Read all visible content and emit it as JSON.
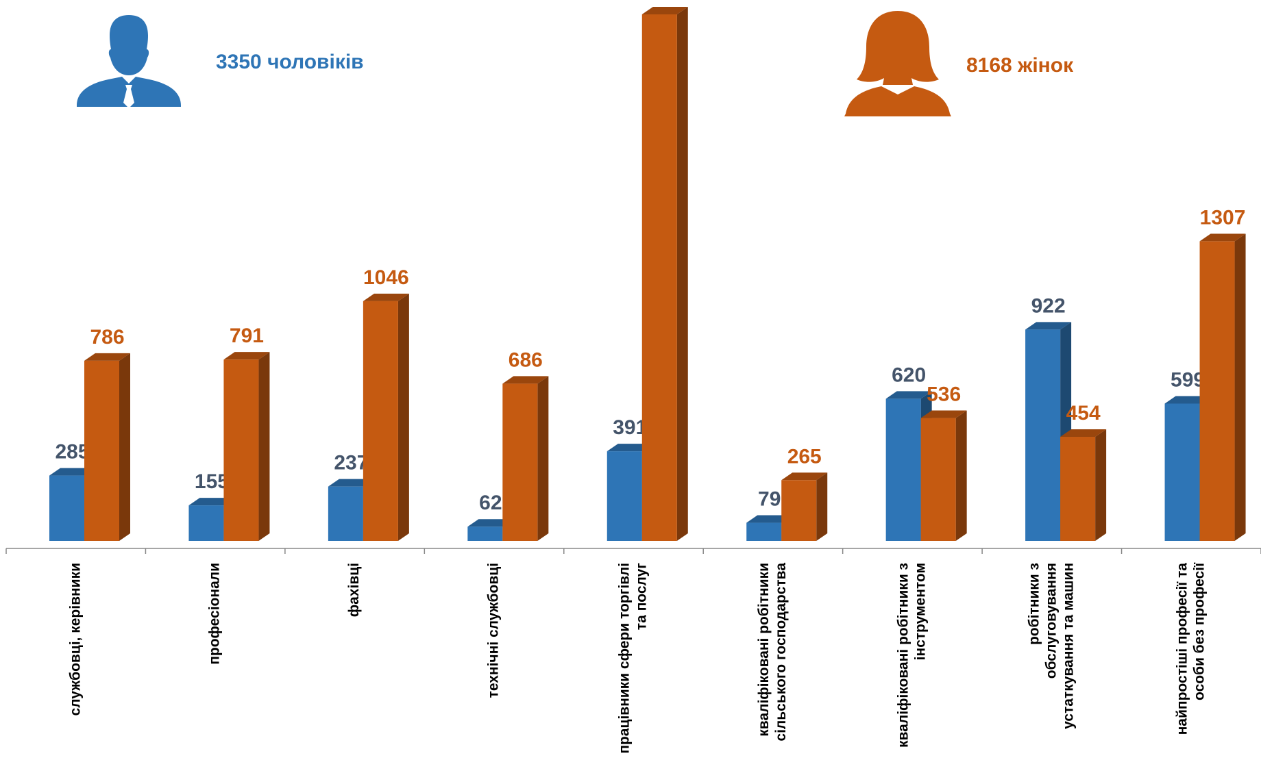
{
  "chart_data": {
    "type": "bar3d",
    "categories": [
      [
        "службовці, керівники"
      ],
      [
        "професіонали"
      ],
      [
        "фахівці"
      ],
      [
        "технічні службовці"
      ],
      [
        "працівники сфери торгівлі",
        "та послуг"
      ],
      [
        "кваліфіковані робітники",
        "сільського господарства"
      ],
      [
        "кваліфіковані робітники з",
        "інструментом"
      ],
      [
        "робітники з",
        "обслуговування",
        "устаткування та машин"
      ],
      [
        "найпростіші професії та",
        "особи без професії"
      ]
    ],
    "series": [
      {
        "name": "3350 чоловіків",
        "color": "#2e75b6",
        "label_color": "#44546a",
        "values": [
          285,
          155,
          237,
          62,
          391,
          79,
          620,
          922,
          599
        ]
      },
      {
        "name": "8168 жінок",
        "color": "#c55a11",
        "label_color": "#c55a11",
        "values": [
          786,
          791,
          1046,
          686,
          2297,
          265,
          536,
          454,
          1307
        ]
      }
    ]
  }
}
